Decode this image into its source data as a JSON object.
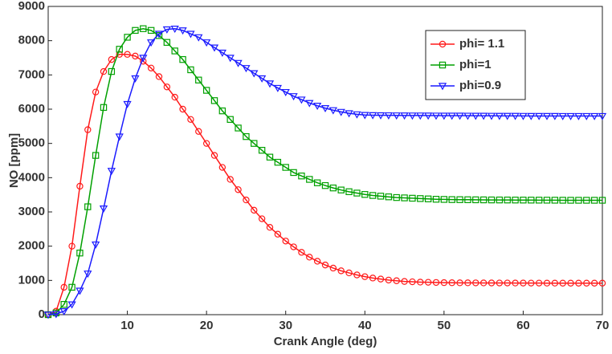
{
  "chart_data": {
    "type": "line",
    "x_label": "Crank Angle (deg)",
    "y_label": "NO [ppm]",
    "x": [
      0,
      1,
      2,
      3,
      4,
      5,
      6,
      7,
      8,
      9,
      10,
      11,
      12,
      13,
      14,
      15,
      16,
      17,
      18,
      19,
      20,
      21,
      22,
      23,
      24,
      25,
      26,
      27,
      28,
      29,
      30,
      31,
      32,
      33,
      34,
      35,
      36,
      37,
      38,
      39,
      40,
      41,
      42,
      43,
      44,
      45,
      46,
      47,
      48,
      49,
      50,
      51,
      52,
      53,
      54,
      55,
      56,
      57,
      58,
      59,
      60,
      61,
      62,
      63,
      64,
      65,
      66,
      67,
      68,
      69,
      70
    ],
    "series": [
      {
        "name": "phi= 1.1",
        "color": "#ff1a1a",
        "marker": "circle",
        "values": [
          0,
          100,
          800,
          2000,
          3750,
          5400,
          6500,
          7100,
          7450,
          7600,
          7600,
          7550,
          7400,
          7200,
          6950,
          6650,
          6350,
          6000,
          5700,
          5350,
          5000,
          4650,
          4300,
          3950,
          3650,
          3350,
          3050,
          2800,
          2550,
          2350,
          2150,
          1980,
          1820,
          1680,
          1560,
          1450,
          1360,
          1280,
          1220,
          1160,
          1110,
          1070,
          1040,
          1010,
          990,
          970,
          960,
          950,
          945,
          940,
          935,
          932,
          930,
          930,
          928,
          927,
          926,
          925,
          925,
          924,
          923,
          922,
          922,
          921,
          921,
          920,
          920,
          920,
          920,
          920,
          920
        ]
      },
      {
        "name": "phi=1",
        "color": "#00a000",
        "marker": "square",
        "values": [
          0,
          50,
          300,
          800,
          1800,
          3150,
          4650,
          6050,
          7100,
          7750,
          8100,
          8300,
          8350,
          8300,
          8150,
          7950,
          7700,
          7450,
          7150,
          6850,
          6550,
          6250,
          5950,
          5700,
          5450,
          5200,
          5000,
          4800,
          4600,
          4450,
          4300,
          4150,
          4050,
          3950,
          3850,
          3770,
          3700,
          3640,
          3590,
          3550,
          3510,
          3480,
          3460,
          3440,
          3420,
          3410,
          3400,
          3390,
          3380,
          3370,
          3365,
          3360,
          3358,
          3356,
          3354,
          3352,
          3350,
          3349,
          3348,
          3347,
          3346,
          3345,
          3344,
          3343,
          3342,
          3341,
          3340,
          3340,
          3340,
          3340,
          3340
        ]
      },
      {
        "name": "phi=0.9",
        "color": "#1a1aff",
        "marker": "triangle",
        "values": [
          0,
          20,
          100,
          300,
          700,
          1200,
          2050,
          3100,
          4200,
          5200,
          6150,
          6900,
          7500,
          7950,
          8200,
          8330,
          8350,
          8300,
          8200,
          8100,
          7950,
          7800,
          7650,
          7500,
          7350,
          7200,
          7050,
          6900,
          6750,
          6620,
          6500,
          6380,
          6280,
          6180,
          6100,
          6030,
          5970,
          5920,
          5880,
          5850,
          5830,
          5825,
          5822,
          5820,
          5818,
          5816,
          5815,
          5814,
          5813,
          5812,
          5811,
          5810,
          5810,
          5809,
          5808,
          5807,
          5806,
          5805,
          5805,
          5804,
          5803,
          5802,
          5802,
          5801,
          5801,
          5800,
          5800,
          5800,
          5800,
          5800,
          5800
        ]
      }
    ],
    "xlim": [
      0,
      70
    ],
    "xticks": [
      10,
      20,
      30,
      40,
      50,
      60,
      70
    ],
    "ylim": [
      0,
      9000
    ],
    "yticks": [
      0,
      1000,
      2000,
      3000,
      4000,
      5000,
      6000,
      7000,
      8000,
      9000
    ],
    "grid": false,
    "legend": "upper right"
  }
}
